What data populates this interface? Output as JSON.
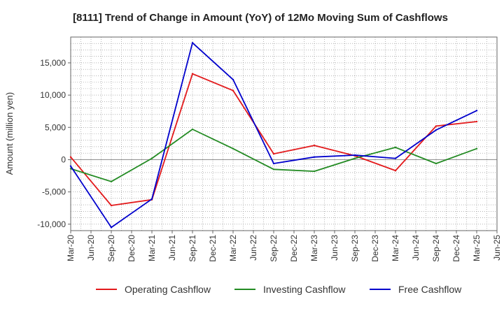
{
  "chart_data": {
    "type": "line",
    "title": "[8111]  Trend of Change in Amount (YoY) of 12Mo Moving Sum of Cashflows",
    "xlabel": "",
    "ylabel": "Amount (million yen)",
    "ylim": [
      -11000,
      19000
    ],
    "yticks": [
      15000,
      10000,
      5000,
      0,
      -5000,
      -10000
    ],
    "ytick_labels": [
      "15,000",
      "10,000",
      "5,000",
      "0",
      "-5,000",
      "-10,000"
    ],
    "categories": [
      "Mar-20",
      "Jun-20",
      "Sep-20",
      "Dec-20",
      "Mar-21",
      "Jun-21",
      "Sep-21",
      "Dec-21",
      "Mar-22",
      "Jun-22",
      "Sep-22",
      "Dec-22",
      "Mar-23",
      "Jun-23",
      "Sep-23",
      "Dec-23",
      "Mar-24",
      "Jun-24",
      "Sep-24",
      "Dec-24",
      "Mar-25",
      "Jun-25"
    ],
    "grid": true,
    "legend_position": "bottom",
    "series": [
      {
        "name": "Operating Cashflow",
        "color": "#e31a1c",
        "points": [
          {
            "x": "Mar-20",
            "y": 400
          },
          {
            "x": "Sep-20",
            "y": -7100
          },
          {
            "x": "Mar-21",
            "y": -6200
          },
          {
            "x": "Sep-21",
            "y": 13300
          },
          {
            "x": "Mar-22",
            "y": 10700
          },
          {
            "x": "Sep-22",
            "y": 900
          },
          {
            "x": "Mar-23",
            "y": 2200
          },
          {
            "x": "Sep-23",
            "y": 600
          },
          {
            "x": "Mar-24",
            "y": -1700
          },
          {
            "x": "Sep-24",
            "y": 5200
          },
          {
            "x": "Mar-25",
            "y": 5900
          }
        ]
      },
      {
        "name": "Investing Cashflow",
        "color": "#238b23",
        "points": [
          {
            "x": "Mar-20",
            "y": -1400
          },
          {
            "x": "Sep-20",
            "y": -3400
          },
          {
            "x": "Mar-21",
            "y": 200
          },
          {
            "x": "Sep-21",
            "y": 4700
          },
          {
            "x": "Mar-22",
            "y": 1700
          },
          {
            "x": "Sep-22",
            "y": -1500
          },
          {
            "x": "Mar-23",
            "y": -1800
          },
          {
            "x": "Sep-23",
            "y": 200
          },
          {
            "x": "Mar-24",
            "y": 1900
          },
          {
            "x": "Sep-24",
            "y": -600
          },
          {
            "x": "Mar-25",
            "y": 1700
          }
        ]
      },
      {
        "name": "Free Cashflow",
        "color": "#0000cc",
        "points": [
          {
            "x": "Mar-20",
            "y": -1000
          },
          {
            "x": "Sep-20",
            "y": -10500
          },
          {
            "x": "Mar-21",
            "y": -6100
          },
          {
            "x": "Sep-21",
            "y": 18100
          },
          {
            "x": "Mar-22",
            "y": 12400
          },
          {
            "x": "Sep-22",
            "y": -600
          },
          {
            "x": "Mar-23",
            "y": 400
          },
          {
            "x": "Sep-23",
            "y": 700
          },
          {
            "x": "Mar-24",
            "y": 200
          },
          {
            "x": "Sep-24",
            "y": 4600
          },
          {
            "x": "Mar-25",
            "y": 7600
          }
        ]
      }
    ]
  }
}
